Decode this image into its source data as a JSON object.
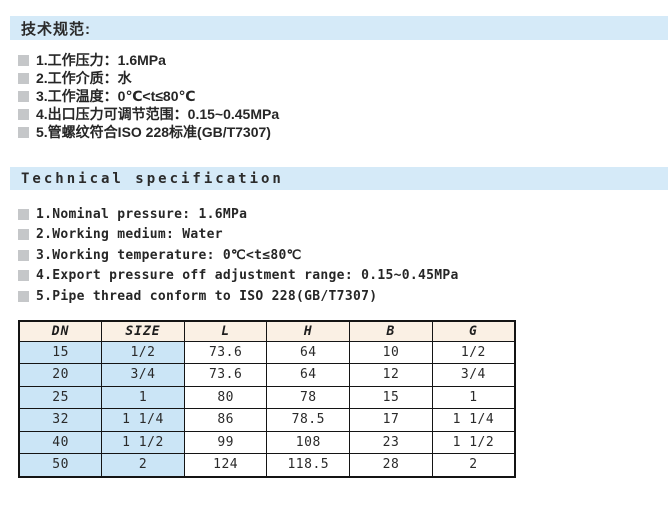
{
  "colors": {
    "section_bar_bg": "#d5eaf8",
    "bullet_gray": "#c5c7c9",
    "table_header_bg": "#faf0e4",
    "table_highlight_cell_bg": "#cbe5f6",
    "table_border": "#141414",
    "text": "#262626"
  },
  "cn_section": {
    "title": "技术规范:",
    "items": [
      "1.工作压力：1.6MPa",
      "2.工作介质：水",
      "3.工作温度：0℃<t≤80℃",
      "4.出口压力可调节范围：0.15~0.45MPa",
      "5.管螺纹符合ISO 228标准(GB/T7307)"
    ]
  },
  "en_section": {
    "title": "Technical specification",
    "items": [
      "1.Nominal pressure: 1.6MPa",
      "2.Working medium: Water",
      "3.Working temperature: 0℃<t≤80℃",
      "4.Export pressure off adjustment range: 0.15~0.45MPa",
      "5.Pipe thread conform to ISO 228(GB/T7307)"
    ]
  },
  "table": {
    "headers": [
      "DN",
      "SIZE",
      "L",
      "H",
      "B",
      "G"
    ],
    "rows": [
      [
        "15",
        "1/2",
        "73.6",
        "64",
        "10",
        "1/2"
      ],
      [
        "20",
        "3/4",
        "73.6",
        "64",
        "12",
        "3/4"
      ],
      [
        "25",
        "1",
        "80",
        "78",
        "15",
        "1"
      ],
      [
        "32",
        "1 1/4",
        "86",
        "78.5",
        "17",
        "1 1/4"
      ],
      [
        "40",
        "1 1/2",
        "99",
        "108",
        "23",
        "1 1/2"
      ],
      [
        "50",
        "2",
        "124",
        "118.5",
        "28",
        "2"
      ]
    ]
  }
}
